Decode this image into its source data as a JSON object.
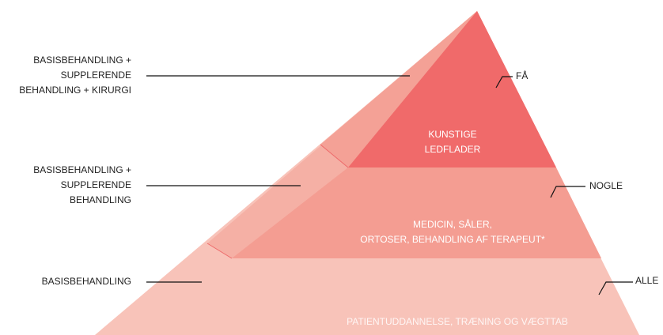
{
  "levels_left": [
    {
      "lines": [
        "BASISBEHANDLING +",
        "SUPPLERENDE",
        "BEHANDLING + KIRURGI"
      ]
    },
    {
      "lines": [
        "BASISBEHANDLING +",
        "SUPPLERENDE",
        "BEHANDLING"
      ]
    },
    {
      "lines": [
        "BASISBEHANDLING"
      ]
    }
  ],
  "levels_right": [
    "FÅ",
    "NOGLE",
    "ALLE"
  ],
  "levels_inner": [
    {
      "lines": [
        "KUNSTIGE",
        "LEDFLADER"
      ]
    },
    {
      "lines": [
        "MEDICIN, SÅLER,",
        "ORTOSER, BEHANDLING AF TERAPEUT*"
      ]
    },
    {
      "lines": [
        "PATIENTUDDANNELSE, TRÆNING OG VÆGTTAB"
      ]
    }
  ]
}
